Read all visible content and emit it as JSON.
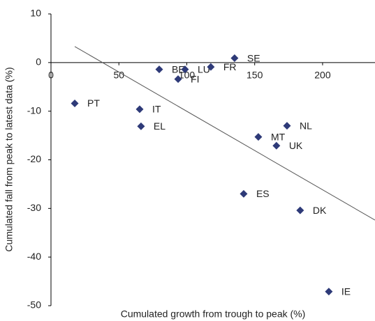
{
  "chart_data": {
    "type": "scatter",
    "x_label": "Cumulated  growth from trough to peak (%)",
    "y_label": "Cumulated  fall from peak to latest data (%)",
    "labels": [
      "PT",
      "IT",
      "EL",
      "BE",
      "LU",
      "FI",
      "FR",
      "SE",
      "NL",
      "MT",
      "UK",
      "ES",
      "DK",
      "IE"
    ],
    "x": [
      17.5,
      65.3,
      66.3,
      79.7,
      98.7,
      93.6,
      117.7,
      135.2,
      173.8,
      152.7,
      166,
      141.9,
      183.5,
      204.6
    ],
    "values": [
      -8.4,
      -9.6,
      -13.1,
      -1.4,
      -1.4,
      -3.4,
      -0.9,
      0.9,
      -13,
      -15.3,
      -17.1,
      -27,
      -30.4,
      -47.1
    ],
    "color": "#2e3a78",
    "trendline": {
      "x": [
        17.5,
        238.6
      ],
      "y": [
        3.3,
        -32.4
      ],
      "color": "#555555"
    },
    "xlim": [
      0,
      238.6
    ],
    "ylim": [
      -50,
      10
    ],
    "xticks": [
      0,
      50,
      100,
      150,
      200
    ],
    "yticks": [
      10,
      0,
      -10,
      -20,
      -30,
      -40,
      -50
    ]
  }
}
